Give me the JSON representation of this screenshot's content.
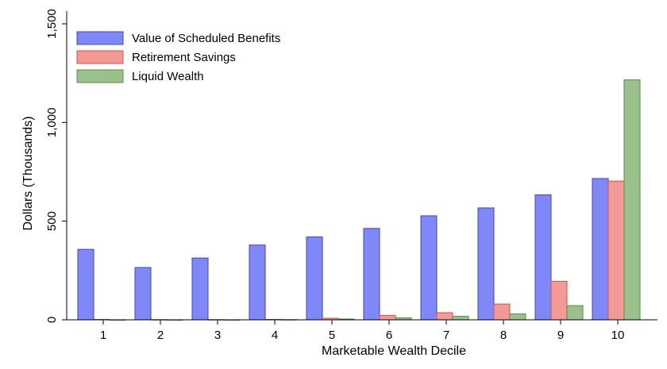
{
  "chart_data": {
    "type": "bar",
    "xlabel": "Marketable Wealth Decile",
    "ylabel": "Dollars (Thousands)",
    "ylim": [
      0,
      1500
    ],
    "yticks": [
      0,
      500,
      1000,
      1500
    ],
    "ytick_labels": [
      "0",
      "500",
      "1,000",
      "1,500"
    ],
    "categories": [
      "1",
      "2",
      "3",
      "4",
      "5",
      "6",
      "7",
      "8",
      "9",
      "10"
    ],
    "legend_position": "top-left",
    "grid": false,
    "series": [
      {
        "name": "Value of Scheduled Benefits",
        "color": "#8088f7",
        "edge": "#3d44c8",
        "values": [
          357,
          265,
          313,
          379,
          420,
          463,
          527,
          567,
          633,
          716
        ]
      },
      {
        "name": "Retirement Savings",
        "color": "#f49a96",
        "edge": "#d0514a",
        "values": [
          2,
          1,
          1,
          2,
          8,
          22,
          36,
          80,
          195,
          703
        ]
      },
      {
        "name": "Liquid Wealth",
        "color": "#9ac08b",
        "edge": "#5a8d4a",
        "values": [
          0,
          0,
          0,
          1,
          4,
          10,
          18,
          30,
          72,
          1216
        ]
      }
    ]
  }
}
